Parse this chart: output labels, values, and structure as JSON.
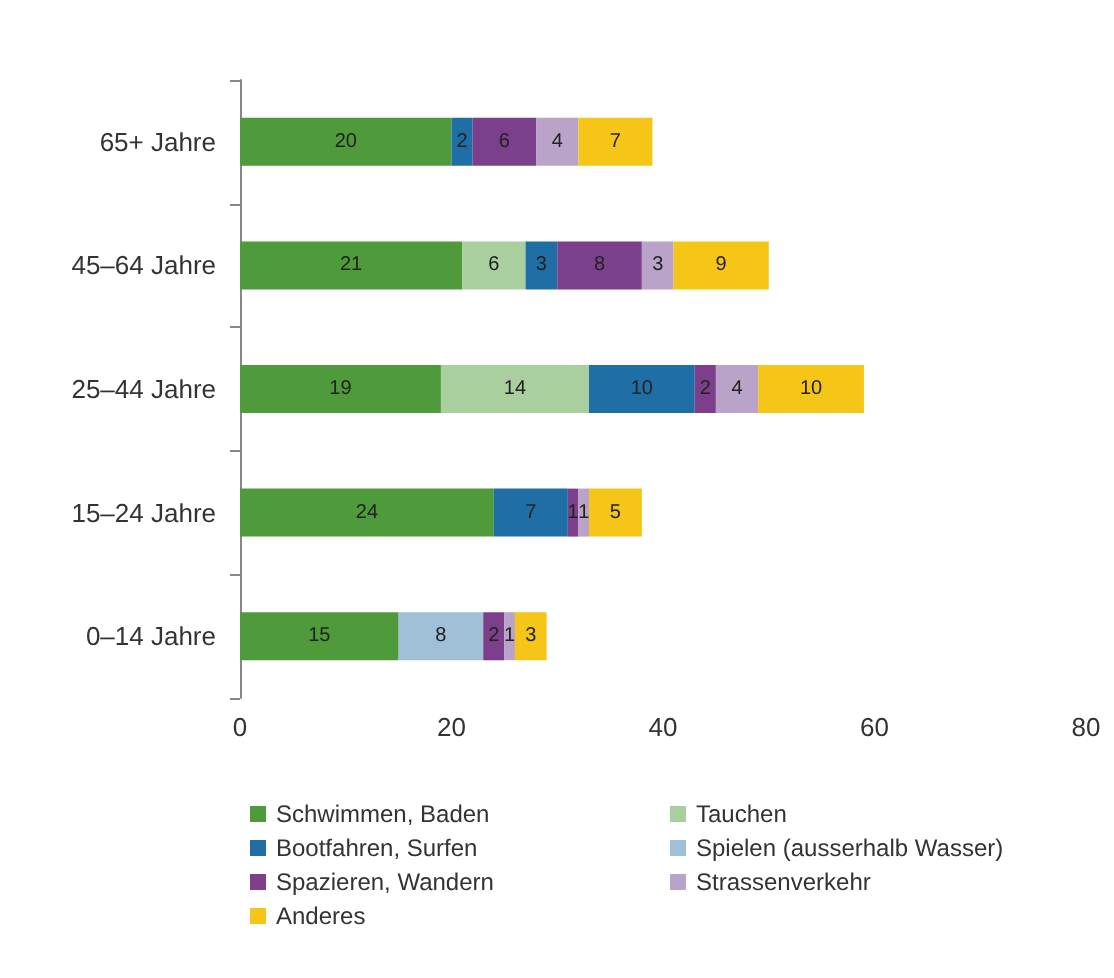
{
  "chart_data": {
    "type": "bar",
    "orientation": "horizontal",
    "stacked": true,
    "data_labels": true,
    "grid": false,
    "legend": "bottom",
    "categories": [
      "65+ Jahre",
      "45–64 Jahre",
      "25–44 Jahre",
      "15–24 Jahre",
      "0–14 Jahre"
    ],
    "xlim": [
      0,
      80
    ],
    "xticks": [
      0,
      20,
      40,
      60,
      80
    ],
    "series": [
      {
        "name": "Schwimmen, Baden",
        "color": "#4f9a3a",
        "values": [
          20,
          21,
          19,
          24,
          15
        ]
      },
      {
        "name": "Tauchen",
        "color": "#a9cf9f",
        "values": [
          null,
          6,
          14,
          null,
          null
        ]
      },
      {
        "name": "Bootfahren, Surfen",
        "color": "#1f6fa6",
        "values": [
          2,
          3,
          10,
          7,
          null
        ]
      },
      {
        "name": "Spielen (ausserhalb Wasser)",
        "color": "#9fc0d6",
        "values": [
          null,
          null,
          null,
          null,
          8
        ]
      },
      {
        "name": "Spazieren, Wandern",
        "color": "#7b3f8c",
        "values": [
          6,
          8,
          2,
          1,
          2
        ]
      },
      {
        "name": "Strassenverkehr",
        "color": "#b9a3c8",
        "values": [
          4,
          3,
          4,
          1,
          1
        ]
      },
      {
        "name": "Anderes",
        "color": "#f5c518",
        "values": [
          7,
          9,
          10,
          5,
          3
        ]
      }
    ]
  }
}
